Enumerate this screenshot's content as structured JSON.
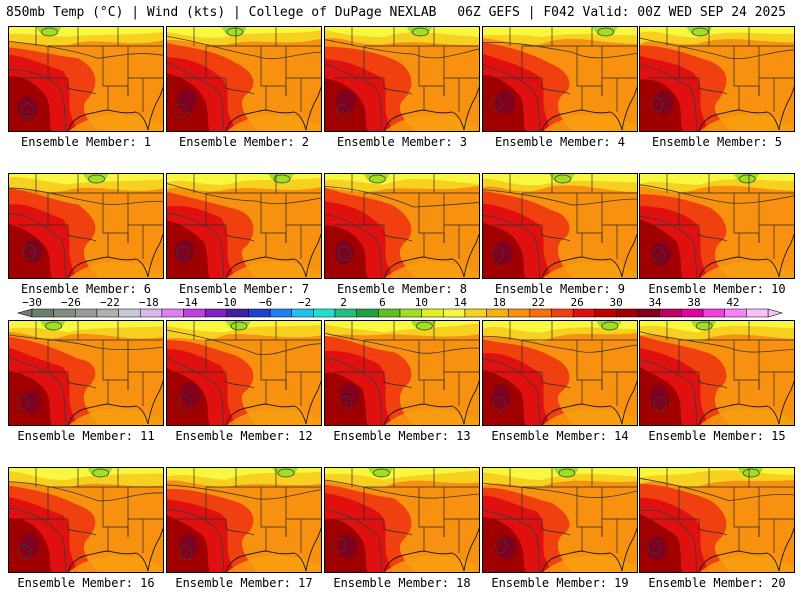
{
  "header": {
    "left": "850mb Temp (°C) | Wind (kts) | College of DuPage NEXLAB",
    "right": "06Z GEFS | F042 Valid: 00Z WED SEP 24 2025"
  },
  "panels": [
    {
      "caption": "Ensemble Member: 1"
    },
    {
      "caption": "Ensemble Member: 2"
    },
    {
      "caption": "Ensemble Member: 3"
    },
    {
      "caption": "Ensemble Member: 4"
    },
    {
      "caption": "Ensemble Member: 5"
    },
    {
      "caption": "Ensemble Member: 6"
    },
    {
      "caption": "Ensemble Member: 7"
    },
    {
      "caption": "Ensemble Member: 8"
    },
    {
      "caption": "Ensemble Member: 9"
    },
    {
      "caption": "Ensemble Member: 10"
    },
    {
      "caption": "Ensemble Member: 11"
    },
    {
      "caption": "Ensemble Member: 12"
    },
    {
      "caption": "Ensemble Member: 13"
    },
    {
      "caption": "Ensemble Member: 14"
    },
    {
      "caption": "Ensemble Member: 15"
    },
    {
      "caption": "Ensemble Member: 16"
    },
    {
      "caption": "Ensemble Member: 17"
    },
    {
      "caption": "Ensemble Member: 18"
    },
    {
      "caption": "Ensemble Member: 19"
    },
    {
      "caption": "Ensemble Member: 20"
    }
  ],
  "colorbar": {
    "unit": "°C",
    "labels": [
      "−30",
      "−26",
      "−22",
      "−18",
      "−14",
      "−10",
      "−6",
      "−2",
      "2",
      "6",
      "10",
      "14",
      "18",
      "22",
      "26",
      "30",
      "34",
      "38",
      "42"
    ],
    "colors": [
      "#6b7f6b",
      "#7f8f7f",
      "#9a9a9a",
      "#b0b0b0",
      "#c8c8d8",
      "#d8b8e8",
      "#e080f0",
      "#c040e0",
      "#8020c0",
      "#4020a0",
      "#2040d0",
      "#2080f0",
      "#20c0f0",
      "#20e0d0",
      "#20c080",
      "#20a040",
      "#60c020",
      "#a0e020",
      "#e0f020",
      "#f8f840",
      "#f8d020",
      "#f8b010",
      "#f89010",
      "#f87010",
      "#f04010",
      "#e01010",
      "#c00000",
      "#a00000",
      "#800020",
      "#c00060",
      "#e000a0",
      "#f040e0",
      "#f880f8",
      "#f8c0f8"
    ],
    "palette": {
      "land_contour": "#3a3a3a",
      "state_lines": "#2a2a2a"
    }
  }
}
